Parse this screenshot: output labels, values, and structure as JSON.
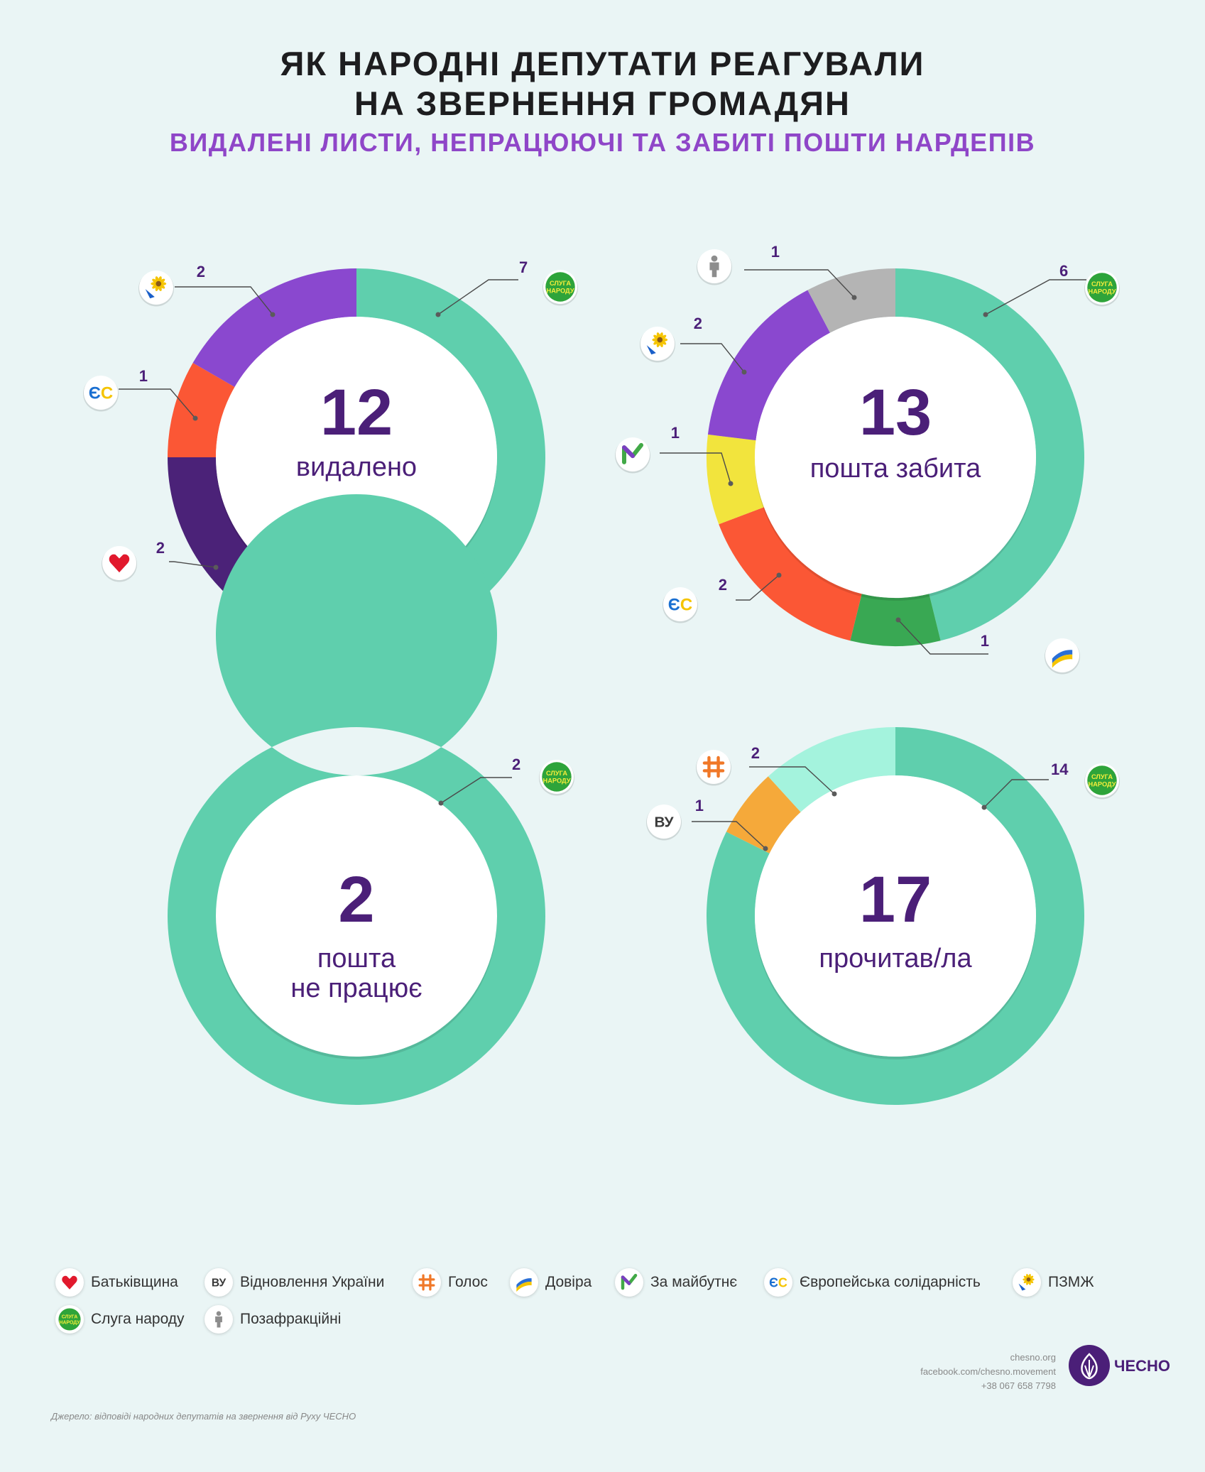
{
  "header": {
    "title_line1": "ЯК НАРОДНІ ДЕПУТАТИ РЕАГУВАЛИ",
    "title_line2": "НА ЗВЕРНЕННЯ ГРОМАДЯН",
    "subtitle": "ВИДАЛЕНІ ЛИСТИ, НЕПРАЦЮЮЧІ ТА ЗАБИТІ ПОШТИ НАРДЕПІВ"
  },
  "colors": {
    "sluga": "#5fcfad",
    "pzmzh": "#8a48cf",
    "es": "#fb5735",
    "batk": "#4b2278",
    "pozaf": "#b4b4b4",
    "maibutne": "#f2e43d",
    "dovira": "#39a853",
    "holos": "#a4f3dd",
    "vu": "#f5a93a",
    "number": "#4b1f78",
    "label_text": "#4b1f78"
  },
  "chart_data": [
    {
      "type": "donut",
      "total": "12",
      "label": "видалено",
      "series": [
        {
          "party": "sluga",
          "value": 7
        },
        {
          "party": "batk",
          "value": 2
        },
        {
          "party": "es",
          "value": 1
        },
        {
          "party": "pzmzh",
          "value": 2
        }
      ]
    },
    {
      "type": "donut",
      "total": "13",
      "label": "пошта забита",
      "series": [
        {
          "party": "sluga",
          "value": 6
        },
        {
          "party": "dovira",
          "value": 1
        },
        {
          "party": "es",
          "value": 2
        },
        {
          "party": "maibutne",
          "value": 1
        },
        {
          "party": "pzmzh",
          "value": 2
        },
        {
          "party": "pozaf",
          "value": 1
        }
      ]
    },
    {
      "type": "donut",
      "total": "2",
      "label": "пошта\nне працює",
      "series": [
        {
          "party": "sluga",
          "value": 2
        }
      ]
    },
    {
      "type": "donut",
      "total": "17",
      "label": "прочитав/ла",
      "series": [
        {
          "party": "sluga",
          "value": 14
        },
        {
          "party": "vu",
          "value": 1
        },
        {
          "party": "holos",
          "value": 2
        }
      ]
    }
  ],
  "legend": [
    {
      "party": "batk",
      "label": "Батьківщина"
    },
    {
      "party": "vu",
      "label": "Відновлення України"
    },
    {
      "party": "holos",
      "label": "Голос"
    },
    {
      "party": "dovira",
      "label": "Довіра"
    },
    {
      "party": "maibutne",
      "label": "За майбутнє"
    },
    {
      "party": "es",
      "label": "Європейська солідарність"
    },
    {
      "party": "pzmzh",
      "label": "ПЗМЖ"
    },
    {
      "party": "sluga",
      "label": "Слуга народу"
    },
    {
      "party": "pozaf",
      "label": "Позафракційні"
    }
  ],
  "badge_text": {
    "sluga": "СЛУГА НАРОДУ",
    "es": "ЄС",
    "vu": "ВУ"
  },
  "footer": {
    "source": "Джерело: відповіді народних депутатів на звернення від Руху ЧЕСНО",
    "site": "chesno.org",
    "facebook": "facebook.com/chesno.movement",
    "phone": "+38 067 658 7798",
    "brand": "ЧЕСНО"
  }
}
